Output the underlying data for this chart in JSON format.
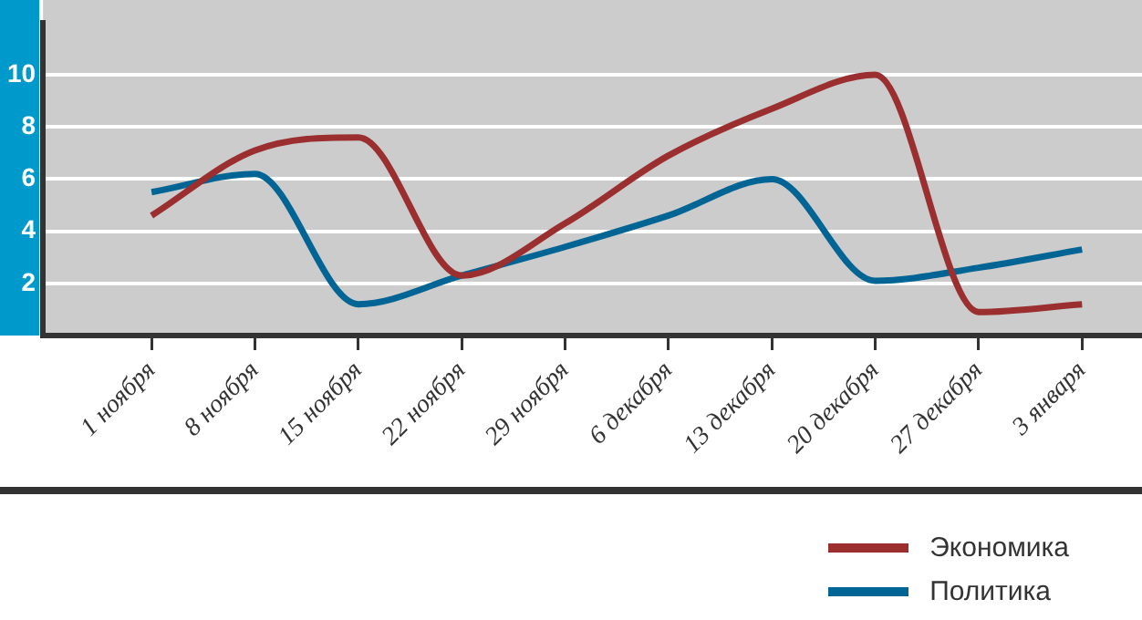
{
  "chart_data": {
    "type": "line",
    "categories": [
      "1 ноября",
      "8 ноября",
      "15 ноября",
      "22 ноября",
      "29 ноября",
      "6 декабря",
      "13 декабря",
      "20 декабря",
      "27 декабря",
      "3 января"
    ],
    "series": [
      {
        "name": "Экономика",
        "color": "#9b2f2f",
        "values": [
          4.6,
          7.1,
          7.6,
          2.3,
          4.3,
          6.9,
          8.7,
          10,
          0.9,
          1.2
        ]
      },
      {
        "name": "Политика",
        "color": "#006494",
        "values": [
          5.5,
          6.2,
          1.2,
          2.3,
          3.4,
          4.6,
          6.0,
          2.1,
          2.6,
          3.3
        ]
      }
    ],
    "ylim": [
      0,
      12
    ],
    "yticks": [
      2,
      4,
      6,
      8,
      10
    ],
    "grid": "y",
    "legend": "bottom right",
    "marker": "none",
    "line_style": "solid"
  }
}
